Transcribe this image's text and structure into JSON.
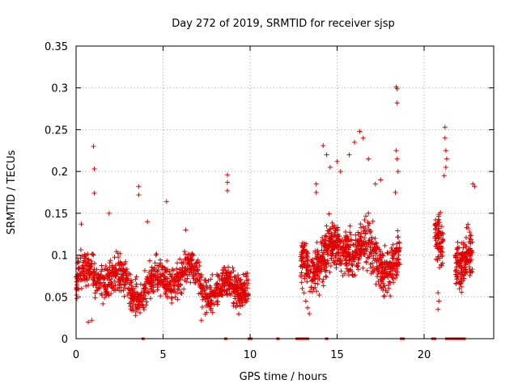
{
  "chart_data": {
    "type": "scatter",
    "title": "Day 272 of 2019, SRMTID for receiver sjsp",
    "xlabel": "GPS time / hours",
    "ylabel": "SRMTID / TECUs",
    "xlim": [
      0,
      24
    ],
    "ylim": [
      0,
      0.35
    ],
    "x_ticks": [
      0,
      5,
      10,
      15,
      20
    ],
    "y_ticks": [
      0,
      0.05,
      0.1,
      0.15,
      0.2,
      0.25,
      0.3,
      0.35
    ],
    "x_tick_labels": [
      "0",
      "5",
      "10",
      "15",
      "20"
    ],
    "y_tick_labels": [
      "0",
      "0.05",
      "0.1",
      "0.15",
      "0.2",
      "0.25",
      "0.3",
      "0.35"
    ],
    "grid": true,
    "marker": "+",
    "color": "#e00000",
    "series": [
      {
        "name": "SRMTID",
        "segments": [
          {
            "x_start": 0.0,
            "x_end": 9.9,
            "count": 1100,
            "center": 0.068,
            "spread": 0.02
          },
          {
            "x_start": 12.9,
            "x_end": 18.6,
            "count": 800,
            "center": 0.1,
            "spread": 0.025
          },
          {
            "x_start": 20.6,
            "x_end": 21.1,
            "count": 80,
            "center": 0.1,
            "spread": 0.03
          },
          {
            "x_start": 21.8,
            "x_end": 22.8,
            "count": 160,
            "center": 0.1,
            "spread": 0.025
          }
        ],
        "points": [
          [
            1.0,
            0.23
          ],
          [
            1.05,
            0.203
          ],
          [
            1.05,
            0.174
          ],
          [
            3.6,
            0.182
          ],
          [
            3.6,
            0.172
          ],
          [
            5.2,
            0.164
          ],
          [
            8.7,
            0.196
          ],
          [
            8.7,
            0.187
          ],
          [
            8.7,
            0.177
          ],
          [
            4.1,
            0.14
          ],
          [
            0.3,
            0.137
          ],
          [
            1.9,
            0.15
          ],
          [
            6.3,
            0.13
          ],
          [
            13.8,
            0.185
          ],
          [
            13.8,
            0.175
          ],
          [
            14.2,
            0.231
          ],
          [
            14.4,
            0.22
          ],
          [
            14.6,
            0.205
          ],
          [
            15.0,
            0.212
          ],
          [
            15.2,
            0.2
          ],
          [
            15.7,
            0.22
          ],
          [
            16.0,
            0.235
          ],
          [
            16.3,
            0.248
          ],
          [
            16.5,
            0.24
          ],
          [
            16.8,
            0.215
          ],
          [
            17.2,
            0.185
          ],
          [
            17.5,
            0.19
          ],
          [
            18.4,
            0.301
          ],
          [
            18.45,
            0.299
          ],
          [
            18.45,
            0.282
          ],
          [
            18.4,
            0.225
          ],
          [
            18.45,
            0.215
          ],
          [
            18.5,
            0.2
          ],
          [
            18.35,
            0.175
          ],
          [
            21.2,
            0.253
          ],
          [
            21.2,
            0.24
          ],
          [
            21.25,
            0.225
          ],
          [
            21.3,
            0.215
          ],
          [
            21.25,
            0.205
          ],
          [
            21.15,
            0.195
          ],
          [
            22.8,
            0.185
          ],
          [
            22.9,
            0.182
          ],
          [
            13.0,
            0.06
          ],
          [
            13.1,
            0.055
          ],
          [
            13.2,
            0.045
          ],
          [
            13.3,
            0.037
          ],
          [
            13.4,
            0.03
          ],
          [
            20.8,
            0.055
          ],
          [
            20.85,
            0.045
          ],
          [
            20.8,
            0.035
          ],
          [
            0.7,
            0.02
          ],
          [
            0.9,
            0.022
          ],
          [
            7.2,
            0.022
          ],
          [
            22.1,
            0.068
          ],
          [
            22.3,
            0.072
          ]
        ]
      }
    ],
    "gap_markers": [
      3.85,
      8.6,
      9.95,
      10.05,
      11.6,
      12.7,
      12.85,
      12.95,
      13.05,
      13.15,
      13.3,
      14.4,
      18.7,
      18.8,
      20.5,
      20.6,
      21.3,
      21.45,
      21.55,
      21.65,
      21.75,
      21.85,
      21.95,
      22.05,
      22.15,
      22.3
    ]
  }
}
